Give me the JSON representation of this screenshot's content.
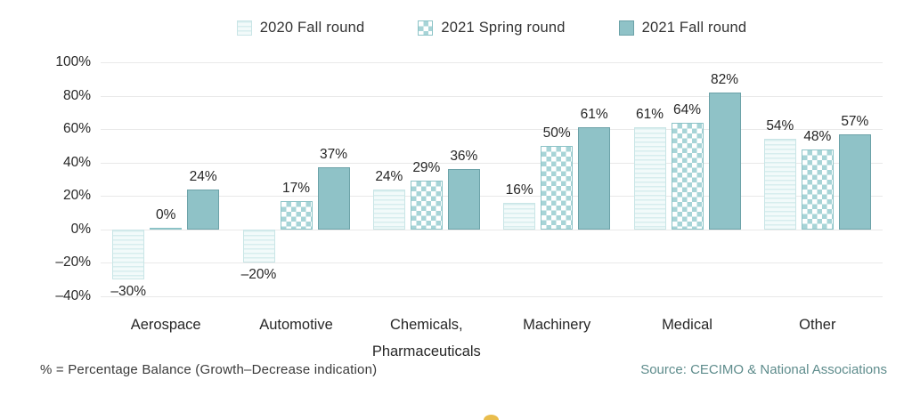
{
  "page": {
    "note": "% = Percentage Balance (Growth–Decrease indication)",
    "source": "Source: CECIMO & National Associations"
  },
  "chart_data": {
    "type": "bar",
    "title": "",
    "xlabel": "",
    "ylabel": "",
    "categories": [
      "Aerospace",
      "Automotive",
      "Chemicals,\nPharmaceuticals",
      "Machinery",
      "Medical",
      "Other"
    ],
    "series": [
      {
        "name": "2020 Fall round",
        "pattern": "stripes",
        "values": [
          -30,
          -20,
          24,
          16,
          61,
          54
        ],
        "labels": [
          "–30%",
          "–20%",
          "24%",
          "16%",
          "61%",
          "54%"
        ]
      },
      {
        "name": "2021 Spring round",
        "pattern": "checker",
        "values": [
          0,
          17,
          29,
          50,
          64,
          48
        ],
        "labels": [
          "0%",
          "17%",
          "29%",
          "50%",
          "64%",
          "48%"
        ]
      },
      {
        "name": "2021 Fall round",
        "pattern": "solid",
        "values": [
          24,
          37,
          36,
          61,
          82,
          57
        ],
        "labels": [
          "24%",
          "37%",
          "36%",
          "61%",
          "82%",
          "57%"
        ]
      }
    ],
    "ylim": [
      -40,
      100
    ],
    "yticks": [
      100,
      80,
      60,
      40,
      20,
      0,
      -20,
      -40
    ],
    "ytick_labels": [
      "100%",
      "80%",
      "60%",
      "40%",
      "20%",
      "0%",
      "–20%",
      "–40%"
    ],
    "grid": "horizontal",
    "legend_position": "top-center",
    "value_labels": true
  },
  "colors": {
    "solid_fill": "#8FC2C7",
    "solid_border": "#6CA2A8",
    "pattern_teal": "#A7D4D7",
    "pattern_border": "#8CC3C7",
    "stripe_base": "#F2FAFA",
    "stripe_line": "#D7EDEE",
    "stripe_border": "#C9E5E6",
    "grid_line": "#E9E9E9",
    "label_text": "#2E2E2E",
    "source_text": "#5E8C8C",
    "logo_gold": "#E9BD4D"
  }
}
